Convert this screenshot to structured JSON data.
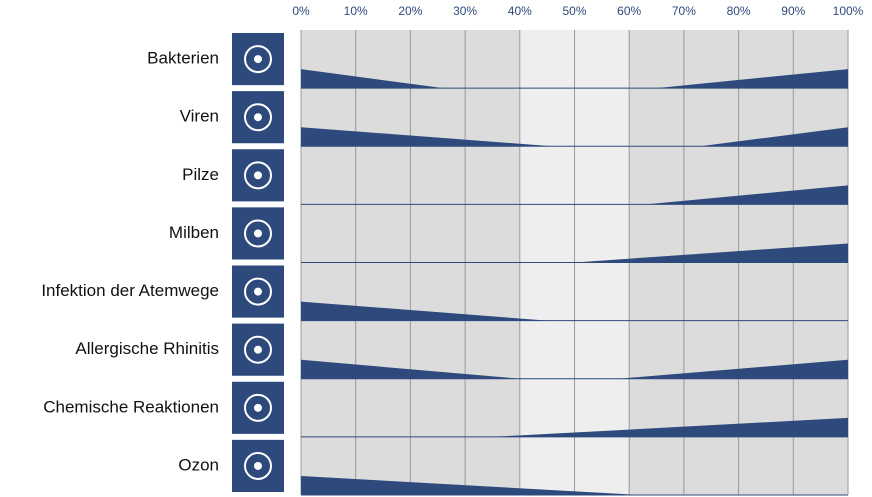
{
  "chart_data": {
    "type": "wedge",
    "categories": [
      "Bakterien",
      "Viren",
      "Pilze",
      "Milben",
      "Infektion der Atemwege",
      "Allergische Rhinitis",
      "Chemische Reaktionen",
      "Ozon"
    ],
    "decline_end": [
      26,
      46,
      null,
      null,
      45,
      40,
      null,
      62
    ],
    "rise_start": [
      65,
      73,
      63,
      50,
      null,
      58,
      35,
      null
    ],
    "color": "#2e4a7d",
    "xlim": [
      0,
      100
    ],
    "xticks": [
      {
        "value": 0,
        "label": "0%"
      },
      {
        "value": 10,
        "label": "10%"
      },
      {
        "value": 20,
        "label": "20%"
      },
      {
        "value": 30,
        "label": "30%"
      },
      {
        "value": 40,
        "label": "40%"
      },
      {
        "value": 50,
        "label": "50%"
      },
      {
        "value": 60,
        "label": "60%"
      },
      {
        "value": 70,
        "label": "70%"
      },
      {
        "value": 80,
        "label": "80%"
      },
      {
        "value": 90,
        "label": "90%"
      },
      {
        "value": 100,
        "label": "100%"
      }
    ]
  }
}
